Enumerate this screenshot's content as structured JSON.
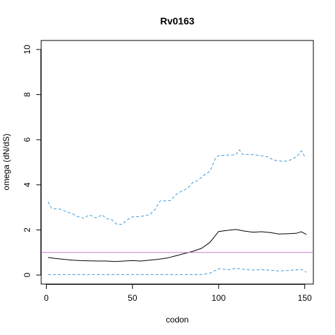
{
  "chart_data": {
    "type": "line",
    "title": "Rv0163",
    "xlabel": "codon",
    "ylabel": "omega (dN/dS)",
    "xlim": [
      -3,
      155
    ],
    "ylim": [
      -0.4,
      10.4
    ],
    "xticks": [
      0,
      50,
      100,
      150
    ],
    "yticks": [
      0,
      2,
      4,
      6,
      8,
      10
    ],
    "grid": false,
    "reference_line": {
      "y": 1,
      "color": "#c77cc7"
    },
    "series": [
      {
        "style": "solid",
        "color": "#000000",
        "points": [
          [
            1,
            0.78
          ],
          [
            5,
            0.74
          ],
          [
            10,
            0.7
          ],
          [
            15,
            0.66
          ],
          [
            20,
            0.64
          ],
          [
            25,
            0.63
          ],
          [
            30,
            0.62
          ],
          [
            35,
            0.62
          ],
          [
            40,
            0.6
          ],
          [
            45,
            0.62
          ],
          [
            50,
            0.64
          ],
          [
            55,
            0.62
          ],
          [
            60,
            0.66
          ],
          [
            65,
            0.7
          ],
          [
            70,
            0.75
          ],
          [
            75,
            0.85
          ],
          [
            80,
            0.95
          ],
          [
            85,
            1.05
          ],
          [
            90,
            1.18
          ],
          [
            95,
            1.45
          ],
          [
            100,
            1.93
          ],
          [
            105,
            1.98
          ],
          [
            110,
            2.02
          ],
          [
            115,
            1.95
          ],
          [
            120,
            1.9
          ],
          [
            125,
            1.92
          ],
          [
            130,
            1.88
          ],
          [
            135,
            1.82
          ],
          [
            140,
            1.83
          ],
          [
            145,
            1.85
          ],
          [
            148,
            1.92
          ],
          [
            151,
            1.8
          ]
        ]
      },
      {
        "style": "dashed",
        "color": "#3a9ad9",
        "points": [
          [
            1,
            3.25
          ],
          [
            3,
            2.95
          ],
          [
            8,
            2.92
          ],
          [
            12,
            2.8
          ],
          [
            15,
            2.72
          ],
          [
            18,
            2.6
          ],
          [
            22,
            2.52
          ],
          [
            25,
            2.68
          ],
          [
            28,
            2.55
          ],
          [
            30,
            2.55
          ],
          [
            32,
            2.68
          ],
          [
            35,
            2.5
          ],
          [
            38,
            2.45
          ],
          [
            41,
            2.25
          ],
          [
            44,
            2.25
          ],
          [
            47,
            2.45
          ],
          [
            50,
            2.58
          ],
          [
            55,
            2.6
          ],
          [
            60,
            2.68
          ],
          [
            63,
            2.9
          ],
          [
            66,
            3.28
          ],
          [
            72,
            3.3
          ],
          [
            75,
            3.55
          ],
          [
            78,
            3.7
          ],
          [
            82,
            3.85
          ],
          [
            85,
            4.1
          ],
          [
            88,
            4.2
          ],
          [
            91,
            4.4
          ],
          [
            95,
            4.6
          ],
          [
            98,
            5.15
          ],
          [
            100,
            5.3
          ],
          [
            105,
            5.32
          ],
          [
            110,
            5.33
          ],
          [
            112,
            5.55
          ],
          [
            114,
            5.35
          ],
          [
            118,
            5.35
          ],
          [
            124,
            5.3
          ],
          [
            128,
            5.25
          ],
          [
            132,
            5.1
          ],
          [
            136,
            5.05
          ],
          [
            140,
            5.05
          ],
          [
            143,
            5.15
          ],
          [
            146,
            5.3
          ],
          [
            148,
            5.5
          ],
          [
            150,
            5.25
          ],
          [
            151,
            5.25
          ]
        ]
      },
      {
        "style": "dashed",
        "color": "#3a9ad9",
        "points": [
          [
            1,
            0.02
          ],
          [
            10,
            0.02
          ],
          [
            20,
            0.02
          ],
          [
            30,
            0.02
          ],
          [
            40,
            0.02
          ],
          [
            50,
            0.02
          ],
          [
            60,
            0.02
          ],
          [
            70,
            0.02
          ],
          [
            80,
            0.02
          ],
          [
            90,
            0.02
          ],
          [
            95,
            0.08
          ],
          [
            98,
            0.2
          ],
          [
            100,
            0.28
          ],
          [
            103,
            0.26
          ],
          [
            106,
            0.24
          ],
          [
            110,
            0.3
          ],
          [
            115,
            0.25
          ],
          [
            120,
            0.22
          ],
          [
            125,
            0.24
          ],
          [
            130,
            0.21
          ],
          [
            135,
            0.18
          ],
          [
            140,
            0.2
          ],
          [
            145,
            0.23
          ],
          [
            148,
            0.25
          ],
          [
            151,
            0.12
          ]
        ]
      }
    ]
  }
}
